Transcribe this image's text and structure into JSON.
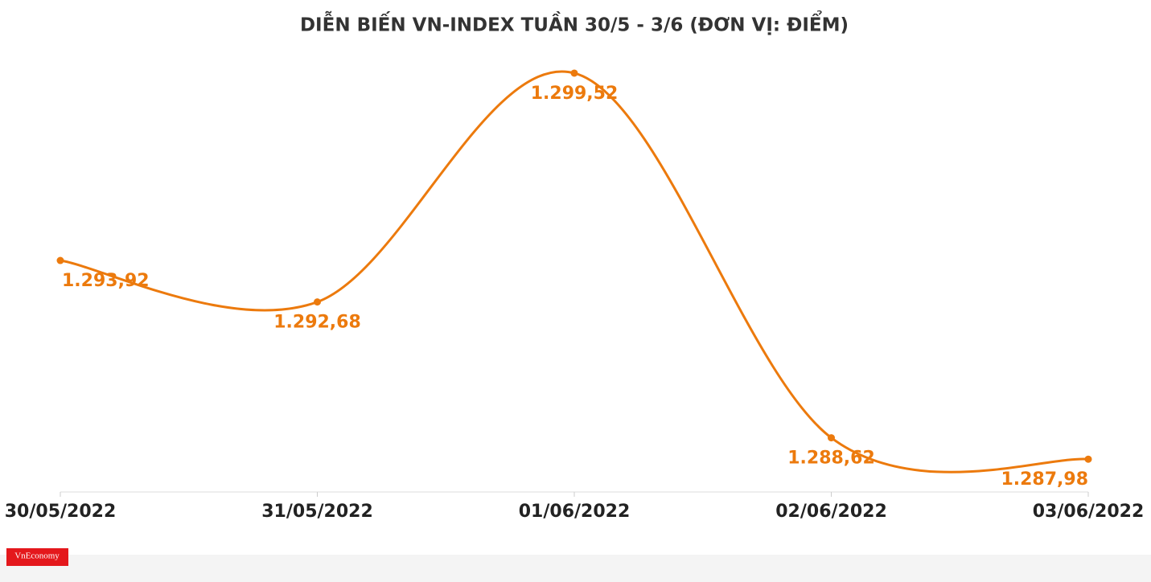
{
  "chart_data": {
    "type": "line",
    "title": "DIỄN BIẾN VN-INDEX TUẦN 30/5 - 3/6 (ĐƠN VỊ: ĐIỂM)",
    "categories": [
      "30/05/2022",
      "31/05/2022",
      "01/06/2022",
      "02/06/2022",
      "03/06/2022"
    ],
    "series": [
      {
        "name": "VN-Index",
        "color": "#ec7a0d",
        "values": [
          1293.92,
          1292.68,
          1299.52,
          1288.62,
          1287.98
        ],
        "value_labels": [
          "1.293,92",
          "1.292,68",
          "1.299,52",
          "1.288,62",
          "1.287,98"
        ]
      }
    ],
    "ylim": [
      1287,
      1300
    ],
    "grid": false,
    "logo": "VnEconomy"
  }
}
